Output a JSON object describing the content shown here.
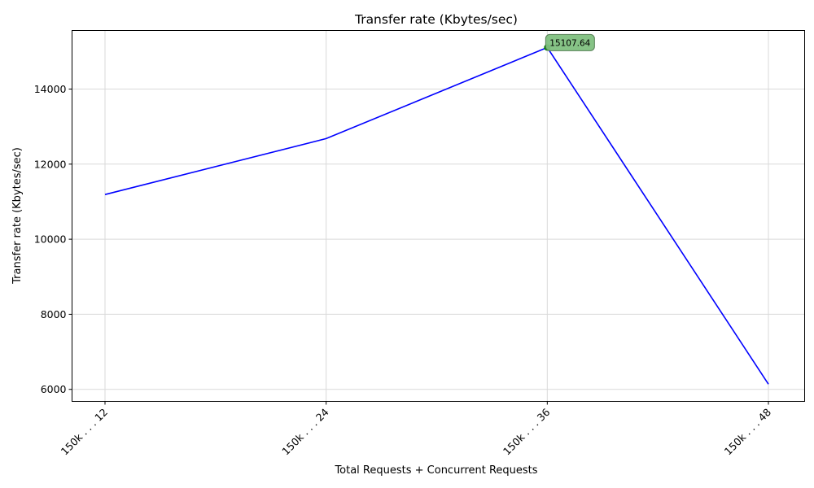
{
  "chart_data": {
    "type": "line",
    "title": "Transfer rate (Kbytes/sec)",
    "xlabel": "Total Requests + Concurrent Requests",
    "ylabel": "Transfer rate (Kbytes/sec)",
    "categories": [
      "150k . . . 12",
      "150k . . . 24",
      "150k . . . 36",
      "150k . . . 48"
    ],
    "series": [
      {
        "values": [
          11190,
          12680,
          15107.64,
          6140
        ],
        "color": "#0000ff"
      }
    ],
    "ylim": [
      5680,
      15560
    ],
    "yticks": [
      6000,
      8000,
      10000,
      12000,
      14000
    ],
    "grid": true,
    "annotation": {
      "category_index": 2,
      "text": "15107.64",
      "marker_color": "#008000",
      "box_color": "#80c080"
    }
  }
}
